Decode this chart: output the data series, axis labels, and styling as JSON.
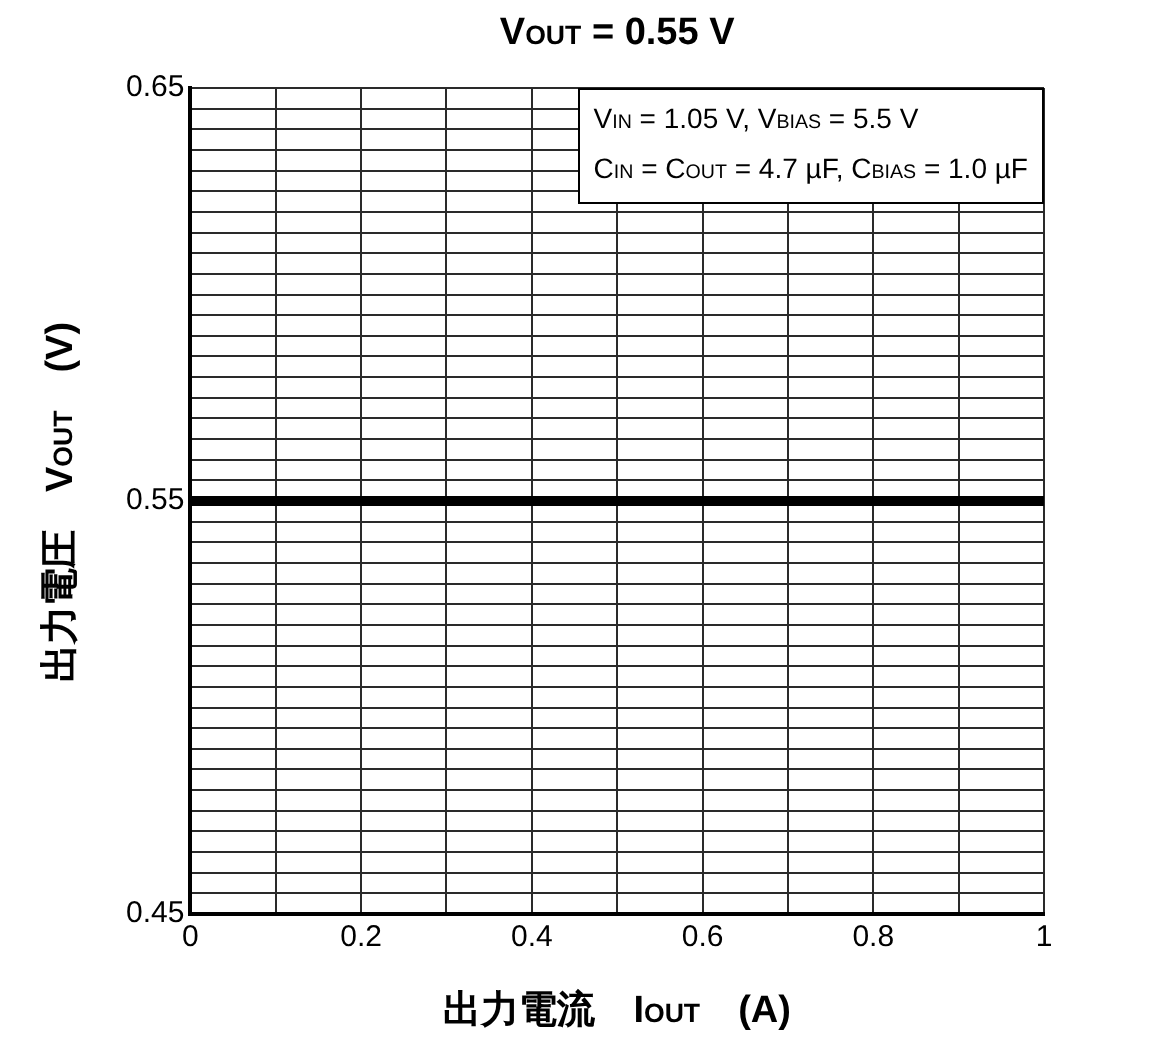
{
  "chart_data": {
    "type": "line",
    "title": "V$_{OUT}$ = 0.55 V",
    "xlabel": "出力電流　I$_{OUT}$　(A)",
    "ylabel": "出力電圧　V$_{OUT}$　(V)",
    "annotations": [
      "V$_{IN}$ = 1.05 V, V$_{BIAS}$ = 5.5 V",
      "C$_{IN}$ = C$_{OUT}$ = 4.7 µF, C$_{BIAS}$ = 1.0 µF"
    ],
    "x": [
      0,
      1
    ],
    "series": [
      {
        "color": "#000000",
        "values": [
          0.55,
          0.55
        ]
      }
    ],
    "xlim": [
      0,
      1
    ],
    "xticks": [
      0,
      {
        "value": 0.1,
        "label": null
      },
      0.2,
      {
        "value": 0.3,
        "label": null
      },
      0.4,
      {
        "value": 0.5,
        "label": null
      },
      0.6,
      {
        "value": 0.7,
        "label": null
      },
      0.8,
      {
        "value": 0.9,
        "label": null
      },
      1
    ],
    "ylim": [
      0.45,
      0.65
    ],
    "yticks": [
      0.45,
      {
        "value": 0.455,
        "label": null
      },
      {
        "value": 0.46,
        "label": null
      },
      {
        "value": 0.465,
        "label": null
      },
      {
        "value": 0.47,
        "label": null
      },
      {
        "value": 0.475,
        "label": null
      },
      {
        "value": 0.48,
        "label": null
      },
      {
        "value": 0.485,
        "label": null
      },
      {
        "value": 0.49,
        "label": null
      },
      {
        "value": 0.495,
        "label": null
      },
      {
        "value": 0.5,
        "label": null
      },
      {
        "value": 0.505,
        "label": null
      },
      {
        "value": 0.51,
        "label": null
      },
      {
        "value": 0.515,
        "label": null
      },
      {
        "value": 0.52,
        "label": null
      },
      {
        "value": 0.525,
        "label": null
      },
      {
        "value": 0.53,
        "label": null
      },
      {
        "value": 0.535,
        "label": null
      },
      {
        "value": 0.54,
        "label": null
      },
      {
        "value": 0.545,
        "label": null
      },
      0.55,
      {
        "value": 0.555,
        "label": null
      },
      {
        "value": 0.56,
        "label": null
      },
      {
        "value": 0.565,
        "label": null
      },
      {
        "value": 0.57,
        "label": null
      },
      {
        "value": 0.575,
        "label": null
      },
      {
        "value": 0.58,
        "label": null
      },
      {
        "value": 0.585,
        "label": null
      },
      {
        "value": 0.59,
        "label": null
      },
      {
        "value": 0.595,
        "label": null
      },
      {
        "value": 0.6,
        "label": null
      },
      {
        "value": 0.605,
        "label": null
      },
      {
        "value": 0.61,
        "label": null
      },
      {
        "value": 0.615,
        "label": null
      },
      {
        "value": 0.62,
        "label": null
      },
      {
        "value": 0.625,
        "label": null
      },
      {
        "value": 0.63,
        "label": null
      },
      {
        "value": 0.635,
        "label": null
      },
      {
        "value": 0.64,
        "label": null
      },
      {
        "value": 0.645,
        "label": null
      },
      0.65
    ],
    "grid": true,
    "legend": false,
    "marker": "none",
    "line_style": "solid"
  }
}
